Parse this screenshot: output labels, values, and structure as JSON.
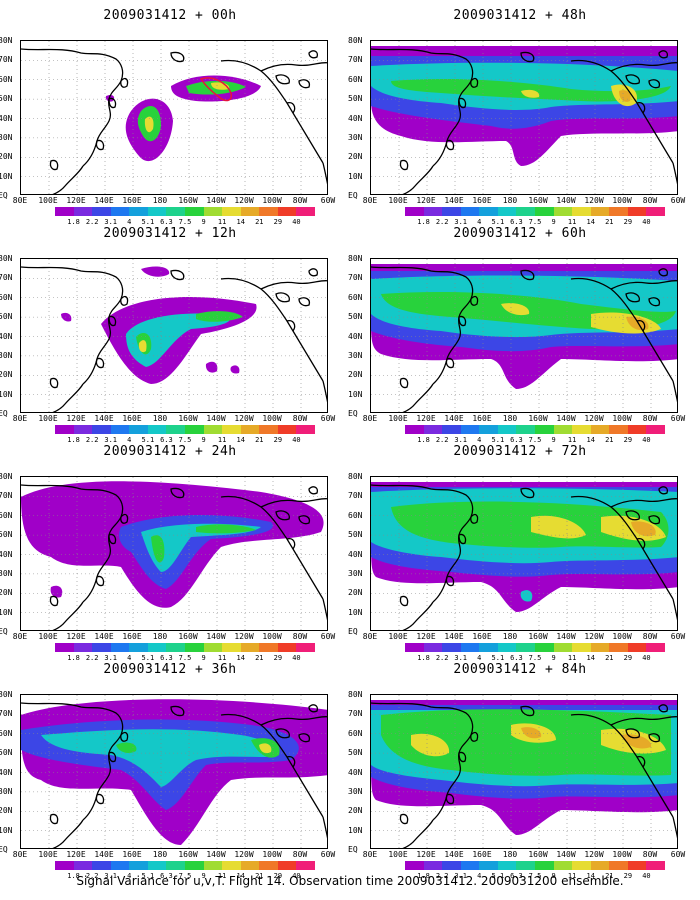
{
  "panels": [
    {
      "id": "p00",
      "title": "2009031412 + 00h"
    },
    {
      "id": "p48",
      "title": "2009031412 + 48h"
    },
    {
      "id": "p12",
      "title": "2009031412 + 12h"
    },
    {
      "id": "p60",
      "title": "2009031412 + 60h"
    },
    {
      "id": "p24",
      "title": "2009031412 + 24h"
    },
    {
      "id": "p72",
      "title": "2009031412 + 72h"
    },
    {
      "id": "p36",
      "title": "2009031412 + 36h"
    },
    {
      "id": "p84",
      "title": "2009031412 + 84h"
    }
  ],
  "lat_labels": [
    "80N",
    "70N",
    "60N",
    "50N",
    "40N",
    "30N",
    "20N",
    "10N",
    "EQ"
  ],
  "lon_labels": [
    "80E",
    "100E",
    "120E",
    "140E",
    "160E",
    "180",
    "160W",
    "140W",
    "120W",
    "100W",
    "80W",
    "60W"
  ],
  "colorbar": {
    "ticks": [
      "1.8",
      "2.2",
      "3.1",
      "4",
      "5.1",
      "6.3",
      "7.5",
      "9",
      "11",
      "14",
      "21",
      "29",
      "40"
    ],
    "colors": [
      "#a000c8",
      "#7a2ae0",
      "#3c46e6",
      "#1e78f0",
      "#14a0dc",
      "#14c8c8",
      "#1ed28c",
      "#28d23c",
      "#a0dc32",
      "#e6dc32",
      "#e6aa28",
      "#f07828",
      "#f03c28",
      "#f01e78"
    ]
  },
  "footer": "Signal Variance for u,v,T. Flight 14. Observation time 2009031412. 2009031200 ensemble.",
  "map_colors": {
    "purple": "#a000c8",
    "blue": "#3c46e6",
    "cyan": "#14b4dc",
    "teal": "#14c8c8",
    "green": "#28d23c",
    "yellow": "#e6dc32",
    "orange": "#e6aa28",
    "coast": "#000000",
    "flight_track": "#e6143c"
  }
}
